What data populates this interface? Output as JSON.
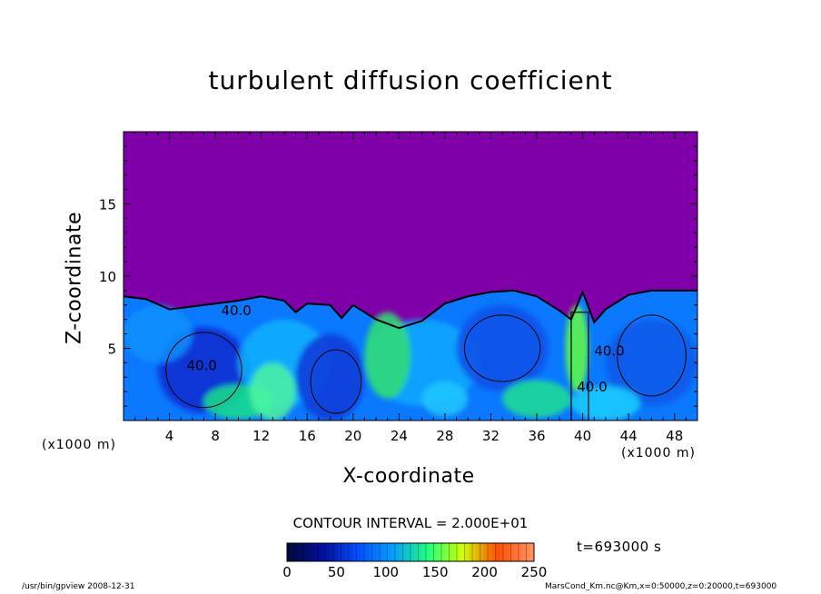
{
  "chart_data": {
    "type": "heatmap",
    "title": "turbulent diffusion coefficient",
    "xlabel": "X-coordinate",
    "ylabel": "Z-coordinate",
    "x_unit": "(x1000 m)",
    "y_unit": "(x1000 m)",
    "xlim": [
      0,
      50
    ],
    "ylim": [
      0,
      20
    ],
    "x_ticks": [
      4,
      8,
      12,
      16,
      20,
      24,
      28,
      32,
      36,
      40,
      44,
      48
    ],
    "y_ticks": [
      5,
      10,
      15
    ],
    "contour_interval": "CONTOUR INTERVAL = 2.000E+01",
    "contour_labels": [
      {
        "text": "40.0",
        "x": 8.5,
        "z": 7.3
      },
      {
        "text": "40.0",
        "x": 5.5,
        "z": 3.5
      },
      {
        "text": "40.0",
        "x": 41.0,
        "z": 4.5
      },
      {
        "text": "40.0",
        "x": 39.5,
        "z": 2.0
      }
    ],
    "boundary_layer_top": [
      [
        0,
        8.6
      ],
      [
        2,
        8.4
      ],
      [
        4,
        7.7
      ],
      [
        6,
        7.9
      ],
      [
        8,
        8.1
      ],
      [
        10,
        8.3
      ],
      [
        12,
        8.6
      ],
      [
        14,
        8.3
      ],
      [
        15,
        7.5
      ],
      [
        16,
        8.1
      ],
      [
        18,
        8.0
      ],
      [
        19,
        7.1
      ],
      [
        20,
        8.0
      ],
      [
        22,
        7.0
      ],
      [
        24,
        6.4
      ],
      [
        26,
        6.9
      ],
      [
        28,
        8.1
      ],
      [
        30,
        8.6
      ],
      [
        32,
        8.9
      ],
      [
        34,
        9.0
      ],
      [
        36,
        8.6
      ],
      [
        38,
        7.6
      ],
      [
        39,
        7.0
      ],
      [
        40,
        8.9
      ],
      [
        41,
        6.8
      ],
      [
        42,
        7.7
      ],
      [
        44,
        8.7
      ],
      [
        46,
        9.0
      ],
      [
        48,
        9.0
      ],
      [
        50,
        9.0
      ]
    ],
    "colorbar": {
      "min": 0,
      "max": 250,
      "ticks": [
        0,
        50,
        100,
        150,
        200,
        250
      ],
      "colors": [
        "#000a3c",
        "#0010a0",
        "#0050ff",
        "#00a0ff",
        "#20ff80",
        "#d0ff00",
        "#ff5000",
        "#ff9060"
      ]
    },
    "background_color": "#7f00a8",
    "time_label": "t=693000 s"
  },
  "footer": {
    "left": "/usr/bin/gpview   2008-12-31",
    "right": "MarsCond_Km.nc@Km,x=0:50000,z=0:20000,t=693000"
  }
}
